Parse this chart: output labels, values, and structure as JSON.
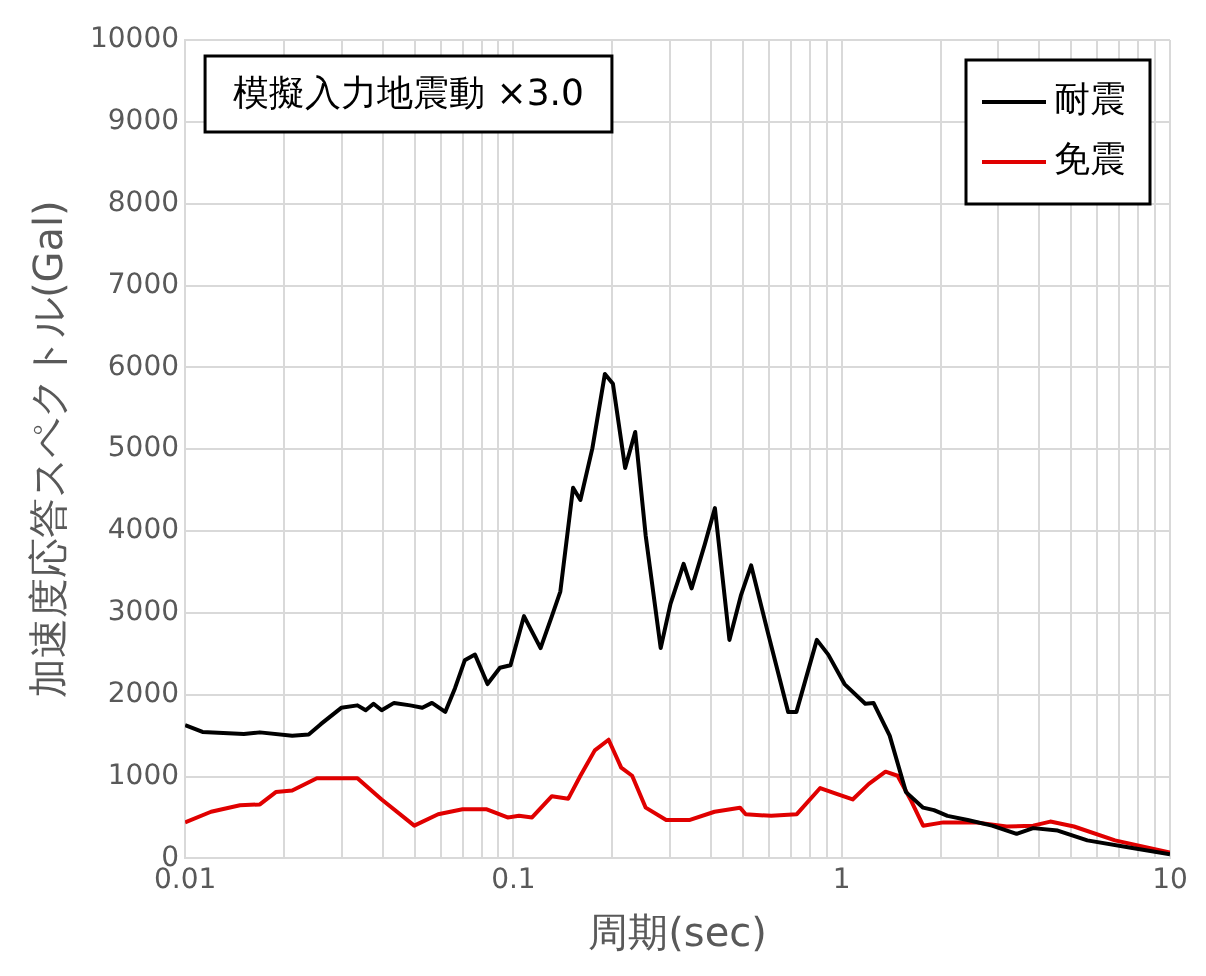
{
  "chart_data": {
    "type": "line",
    "xlabel": "周期(sec)",
    "ylabel": "加速度応答スペクトル(Gal)",
    "annotations": [
      "模擬入力地震動 ×3.0"
    ],
    "log": "x",
    "grid": true,
    "legend": "top right",
    "xlim": [
      0.01,
      10
    ],
    "xticks": [
      0.01,
      {
        "value": 0.02,
        "label": null
      },
      {
        "value": 0.03,
        "label": null
      },
      {
        "value": 0.04,
        "label": null
      },
      {
        "value": 0.05,
        "label": null
      },
      {
        "value": 0.06,
        "label": null
      },
      {
        "value": 0.07,
        "label": null
      },
      {
        "value": 0.08,
        "label": null
      },
      {
        "value": 0.09,
        "label": null
      },
      0.1,
      {
        "value": 0.2,
        "label": null
      },
      {
        "value": 0.3,
        "label": null
      },
      {
        "value": 0.4,
        "label": null
      },
      {
        "value": 0.5,
        "label": null
      },
      {
        "value": 0.6,
        "label": null
      },
      {
        "value": 0.7,
        "label": null
      },
      {
        "value": 0.8,
        "label": null
      },
      {
        "value": 0.9,
        "label": null
      },
      1,
      {
        "value": 2,
        "label": null
      },
      {
        "value": 3,
        "label": null
      },
      {
        "value": 4,
        "label": null
      },
      {
        "value": 5,
        "label": null
      },
      {
        "value": 6,
        "label": null
      },
      {
        "value": 7,
        "label": null
      },
      {
        "value": 8,
        "label": null
      },
      {
        "value": 9,
        "label": null
      },
      10
    ],
    "ylim": [
      0,
      10000
    ],
    "yticks": [
      0,
      1000,
      2000,
      3000,
      4000,
      5000,
      6000,
      7000,
      8000,
      9000,
      10000
    ],
    "series": [
      {
        "name": "耐震",
        "color": "#000000",
        "x": [
          0.01,
          0.0113,
          0.0151,
          0.0169,
          0.0212,
          0.0238,
          0.0259,
          0.0299,
          0.0335,
          0.0355,
          0.0375,
          0.0397,
          0.0433,
          0.0485,
          0.0528,
          0.0565,
          0.062,
          0.0664,
          0.0711,
          0.0764,
          0.0834,
          0.091,
          0.098,
          0.1077,
          0.121,
          0.131,
          0.139,
          0.152,
          0.16,
          0.174,
          0.19,
          0.201,
          0.219,
          0.235,
          0.253,
          0.281,
          0.301,
          0.33,
          0.349,
          0.383,
          0.411,
          0.455,
          0.493,
          0.53,
          0.595,
          0.687,
          0.728,
          0.84,
          0.91,
          1.02,
          1.18,
          1.25,
          1.4,
          1.57,
          1.77,
          1.91,
          2.1,
          2.42,
          2.87,
          3.41,
          3.83,
          4.55,
          5.6,
          7.6,
          10
        ],
        "values": [
          1630,
          1545,
          1520,
          1540,
          1500,
          1515,
          1640,
          1840,
          1870,
          1810,
          1890,
          1810,
          1900,
          1870,
          1840,
          1900,
          1790,
          2080,
          2420,
          2490,
          2130,
          2330,
          2360,
          2960,
          2570,
          2960,
          3260,
          4530,
          4380,
          5010,
          5920,
          5800,
          4770,
          5210,
          3940,
          2570,
          3110,
          3600,
          3300,
          3840,
          4280,
          2670,
          3210,
          3580,
          2770,
          1790,
          1790,
          2670,
          2490,
          2130,
          1890,
          1900,
          1500,
          810,
          620,
          590,
          520,
          470,
          400,
          300,
          370,
          340,
          220,
          130,
          50
        ]
      },
      {
        "name": "免震",
        "color": "#e00000",
        "x": [
          0.01,
          0.012,
          0.0147,
          0.0169,
          0.0189,
          0.0212,
          0.0252,
          0.0335,
          0.0397,
          0.0499,
          0.059,
          0.07,
          0.083,
          0.096,
          0.104,
          0.114,
          0.131,
          0.147,
          0.16,
          0.177,
          0.195,
          0.213,
          0.23,
          0.253,
          0.292,
          0.345,
          0.41,
          0.49,
          0.51,
          0.61,
          0.73,
          0.86,
          0.96,
          1.08,
          1.21,
          1.36,
          1.48,
          1.62,
          1.77,
          2.04,
          2.56,
          3.18,
          3.83,
          4.32,
          5.1,
          6.8,
          10
        ],
        "values": [
          440,
          570,
          650,
          660,
          810,
          830,
          980,
          980,
          720,
          400,
          540,
          600,
          600,
          500,
          520,
          500,
          760,
          730,
          1010,
          1320,
          1450,
          1110,
          1010,
          620,
          470,
          470,
          570,
          620,
          540,
          520,
          540,
          860,
          790,
          720,
          910,
          1060,
          1010,
          720,
          400,
          440,
          440,
          390,
          400,
          450,
          390,
          220,
          70
        ]
      }
    ]
  }
}
